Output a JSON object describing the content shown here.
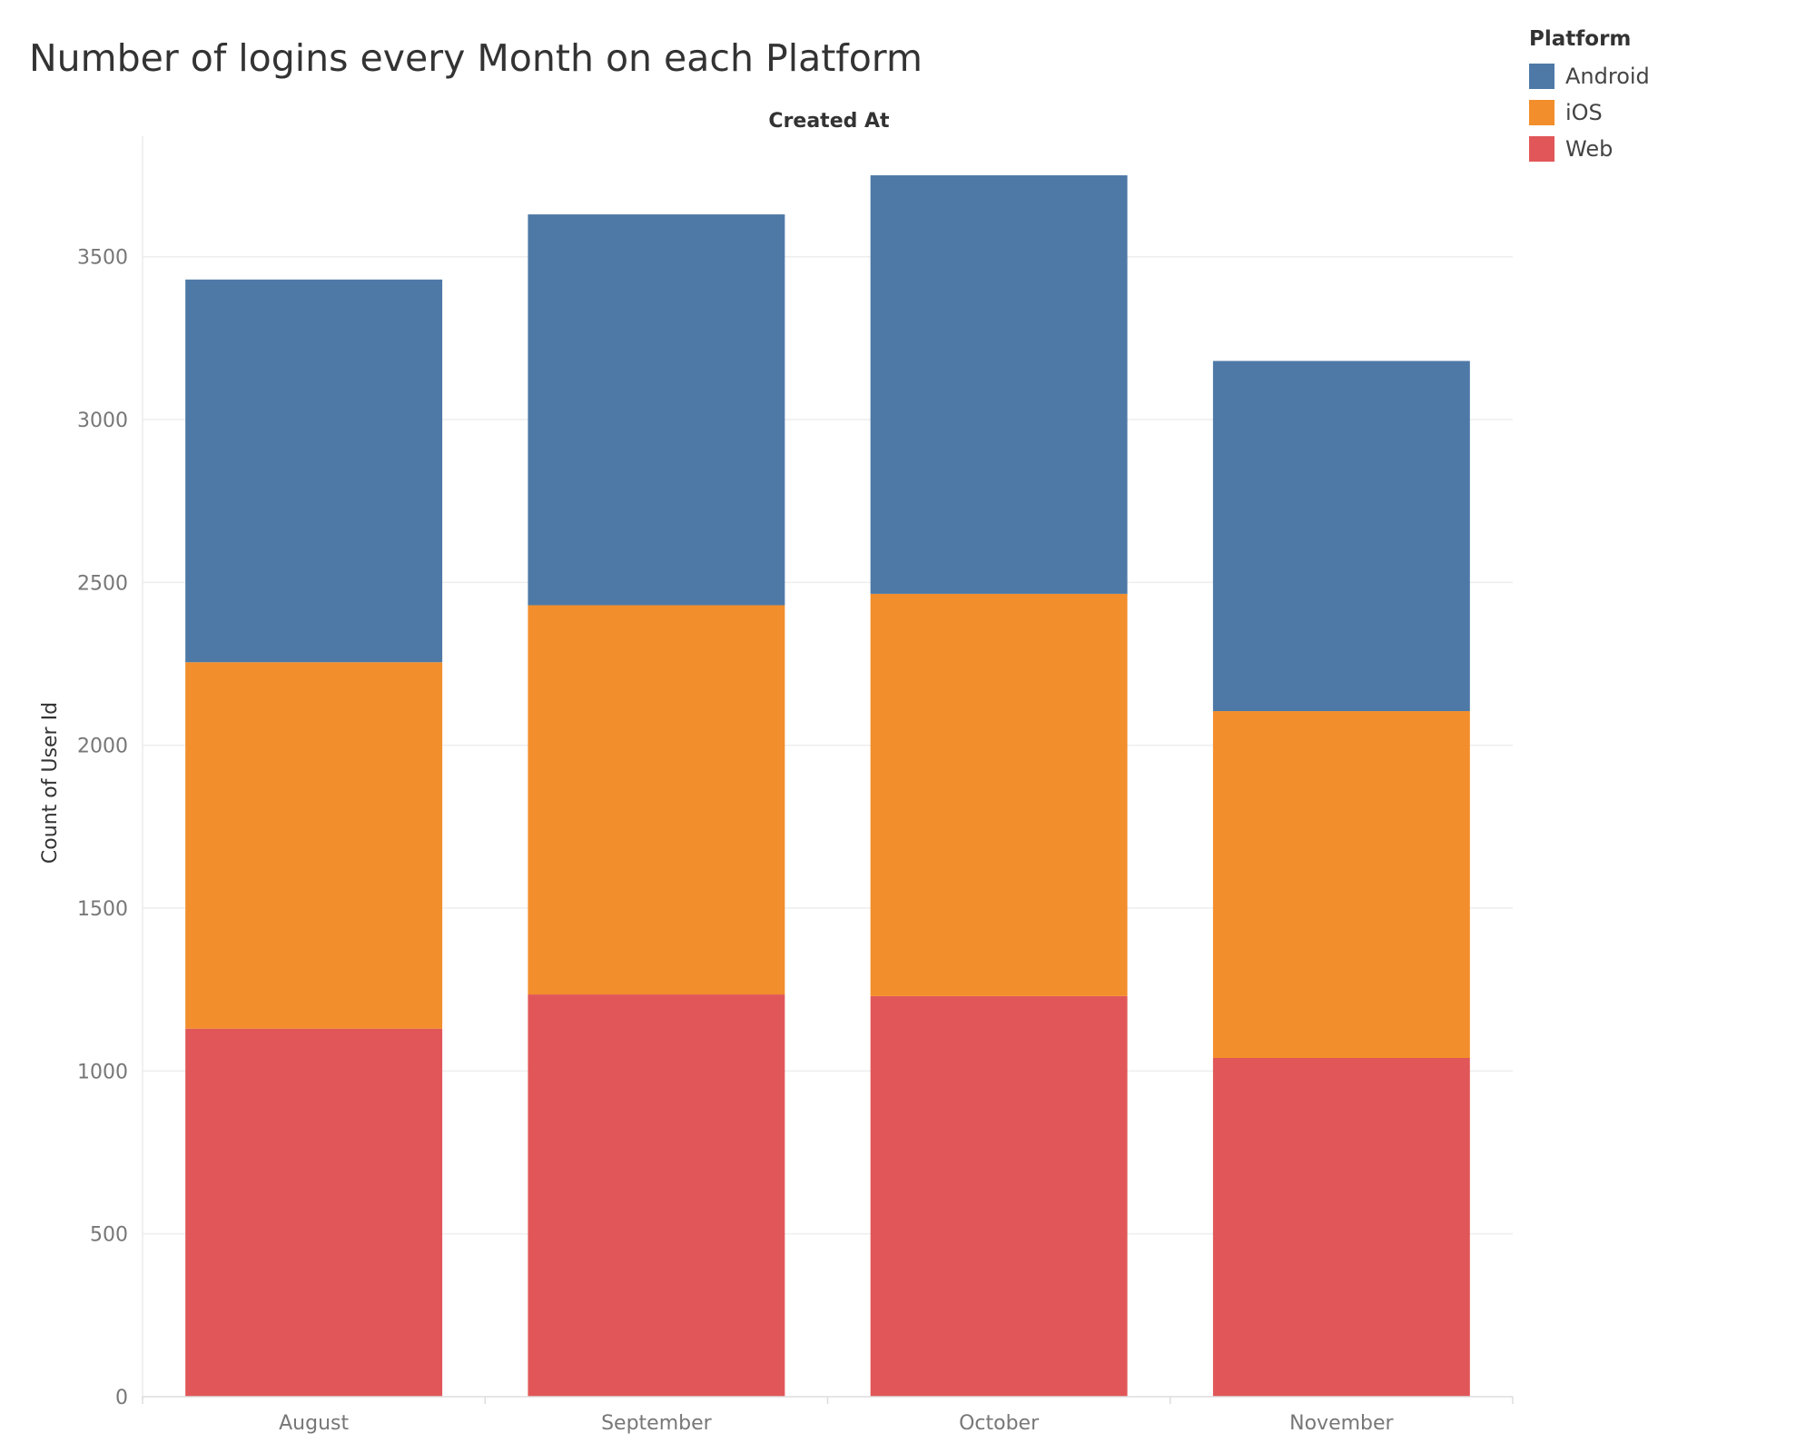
{
  "chart_data": {
    "type": "bar",
    "stacked": true,
    "title": "Number of logins every Month on each Platform",
    "column_header": "Created At",
    "xlabel": "",
    "ylabel": "Count of User Id",
    "categories": [
      "August",
      "September",
      "October",
      "November"
    ],
    "series": [
      {
        "name": "Web",
        "color": "#e15759",
        "values": [
          1130,
          1235,
          1230,
          1040
        ]
      },
      {
        "name": "iOS",
        "color": "#f28e2b",
        "values": [
          1125,
          1195,
          1235,
          1065
        ]
      },
      {
        "name": "Android",
        "color": "#4e79a7",
        "values": [
          1175,
          1200,
          1285,
          1075
        ]
      }
    ],
    "yticks": [
      0,
      500,
      1000,
      1500,
      2000,
      2500,
      3000,
      3500
    ],
    "ylim": [
      0,
      3870
    ],
    "grid": true,
    "legend": {
      "title": "Platform",
      "position": "top-right",
      "items": [
        {
          "label": "Android",
          "color": "#4e79a7"
        },
        {
          "label": "iOS",
          "color": "#f28e2b"
        },
        {
          "label": "Web",
          "color": "#e15759"
        }
      ]
    }
  }
}
